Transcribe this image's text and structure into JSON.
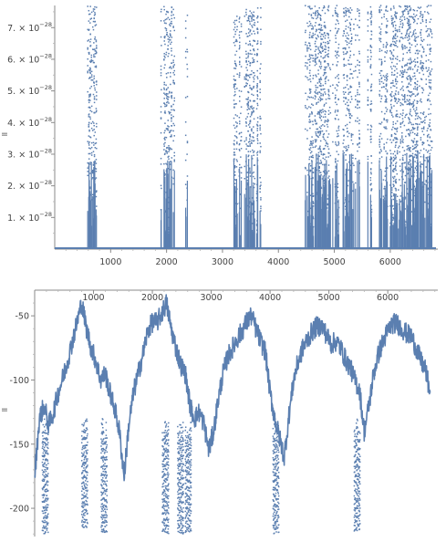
{
  "colors": {
    "series": "#5b7fb0",
    "axis": "#8a8a8a"
  },
  "chart_data": [
    {
      "type": "scatter",
      "title": "",
      "xlabel": "",
      "ylabel": "",
      "xlim": [
        0,
        6850
      ],
      "ylim": [
        0,
        7.7e-28
      ],
      "x_ticks": [
        1000,
        2000,
        3000,
        4000,
        5000,
        6000
      ],
      "x_tick_labels": [
        "1000",
        "2000",
        "3000",
        "4000",
        "5000",
        "6000"
      ],
      "y_ticks": [
        1e-28,
        2e-28,
        3e-28,
        4e-28,
        5e-28,
        6e-28,
        7e-28
      ],
      "y_tick_mantissa": [
        "1.",
        "2.",
        "3.",
        "4.",
        "5.",
        "6.",
        "7."
      ],
      "y_tick_times": "×",
      "y_tick_base": "10",
      "y_tick_exponent": "−28",
      "clusters": [
        {
          "x": [
            590,
            750
          ],
          "density": 0.7
        },
        {
          "x": [
            1900,
            2150
          ],
          "density": 0.6
        },
        {
          "x": [
            2330,
            2400
          ],
          "density": 0.4
        },
        {
          "x": [
            3180,
            3280
          ],
          "density": 0.55
        },
        {
          "x": [
            3300,
            3580
          ],
          "density": 0.55
        },
        {
          "x": [
            3600,
            3700
          ],
          "density": 0.35
        },
        {
          "x": [
            4480,
            4750
          ],
          "density": 0.6
        },
        {
          "x": [
            4750,
            5100
          ],
          "density": 0.6
        },
        {
          "x": [
            5150,
            5450
          ],
          "density": 0.5
        },
        {
          "x": [
            5600,
            5700
          ],
          "density": 0.35
        },
        {
          "x": [
            5800,
            5950
          ],
          "density": 0.4
        },
        {
          "x": [
            6000,
            6750
          ],
          "density": 0.75
        }
      ],
      "baseline_value": 0,
      "grid": false,
      "legend": "none"
    },
    {
      "type": "line",
      "title": "",
      "xlabel": "",
      "ylabel": "",
      "xlim": [
        0,
        6850
      ],
      "ylim": [
        -222,
        -30
      ],
      "x_ticks": [
        1000,
        2000,
        3000,
        4000,
        5000,
        6000
      ],
      "x_tick_labels": [
        "1000",
        "2000",
        "3000",
        "4000",
        "5000",
        "6000"
      ],
      "y_ticks": [
        -50,
        -100,
        -150,
        -200
      ],
      "y_tick_labels": [
        "-50",
        "-100",
        "-150",
        "-200"
      ],
      "x": [
        0,
        80,
        160,
        240,
        320,
        400,
        480,
        560,
        640,
        720,
        800,
        880,
        960,
        1040,
        1120,
        1200,
        1280,
        1360,
        1440,
        1520,
        1600,
        1680,
        1760,
        1840,
        1920,
        2000,
        2080,
        2160,
        2240,
        2320,
        2400,
        2480,
        2560,
        2640,
        2720,
        2800,
        2880,
        2960,
        3040,
        3120,
        3200,
        3280,
        3360,
        3440,
        3520,
        3600,
        3680,
        3760,
        3840,
        3920,
        4000,
        4080,
        4160,
        4240,
        4320,
        4400,
        4480,
        4560,
        4640,
        4720,
        4800,
        4880,
        4960,
        5040,
        5120,
        5200,
        5280,
        5360,
        5440,
        5520,
        5600,
        5680,
        5760,
        5840,
        5920,
        6000,
        6080,
        6160,
        6240,
        6320,
        6400,
        6480,
        6560,
        6640,
        6720
      ],
      "y": [
        -175,
        -130,
        -120,
        -135,
        -125,
        -110,
        -98,
        -85,
        -70,
        -55,
        -40,
        -60,
        -75,
        -85,
        -100,
        -95,
        -110,
        -122,
        -140,
        -175,
        -135,
        -110,
        -95,
        -80,
        -62,
        -55,
        -55,
        -48,
        -40,
        -60,
        -75,
        -88,
        -95,
        -120,
        -130,
        -125,
        -135,
        -155,
        -140,
        -115,
        -95,
        -82,
        -75,
        -68,
        -62,
        -55,
        -50,
        -60,
        -70,
        -78,
        -110,
        -130,
        -145,
        -160,
        -128,
        -100,
        -85,
        -75,
        -68,
        -62,
        -58,
        -58,
        -65,
        -72,
        -70,
        -75,
        -84,
        -90,
        -100,
        -108,
        -140,
        -120,
        -95,
        -80,
        -70,
        -62,
        -56,
        -56,
        -60,
        -64,
        -66,
        -75,
        -85,
        -92,
        -110
      ],
      "dropouts": [
        {
          "x": [
            130,
            230
          ],
          "min": -220
        },
        {
          "x": [
            800,
            900
          ],
          "min": -215
        },
        {
          "x": [
            1130,
            1230
          ],
          "min": -220
        },
        {
          "x": [
            2170,
            2280
          ],
          "min": -220
        },
        {
          "x": [
            2430,
            2530
          ],
          "min": -220
        },
        {
          "x": [
            2560,
            2660
          ],
          "min": -220
        },
        {
          "x": [
            4050,
            4150
          ],
          "min": -220
        },
        {
          "x": [
            5430,
            5530
          ],
          "min": -218
        }
      ],
      "grid": false,
      "legend": "none"
    }
  ]
}
